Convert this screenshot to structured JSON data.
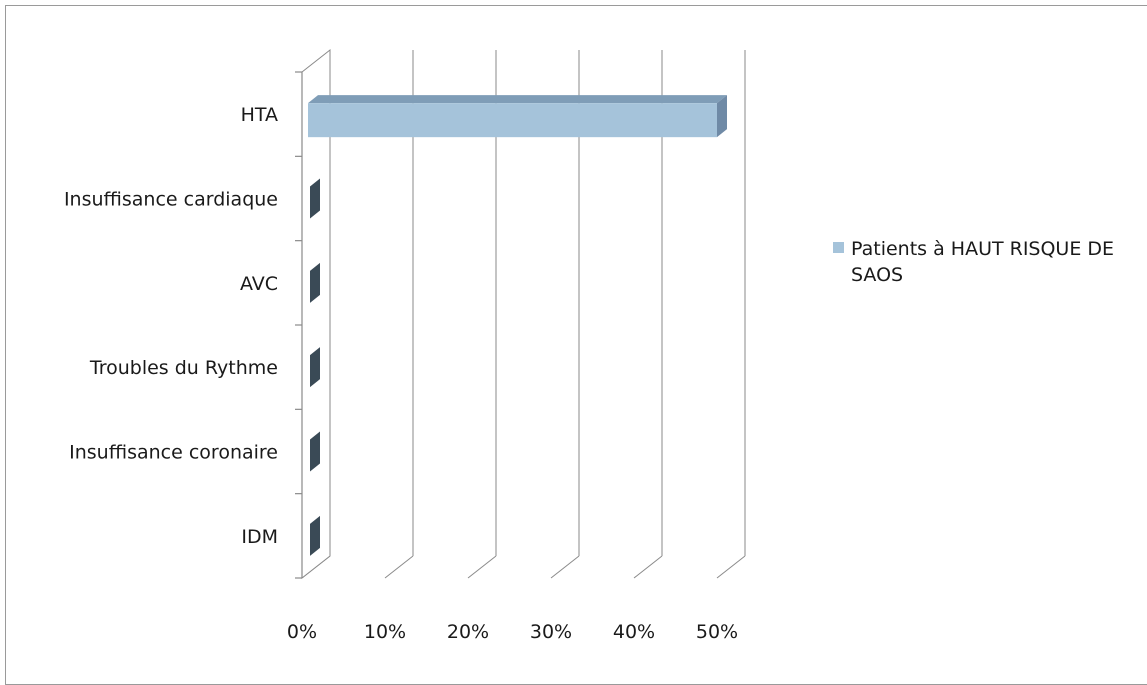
{
  "chart_data": {
    "type": "bar",
    "orientation": "horizontal",
    "three_d": true,
    "categories": [
      "HTA",
      "Insuffisance cardiaque",
      "AVC",
      "Troubles du Rythme",
      "Insuffisance coronaire",
      "IDM"
    ],
    "series": [
      {
        "name": "Patients à HAUT RISQUE DE SAOS",
        "values": [
          0.5,
          0,
          0,
          0,
          0,
          0
        ]
      }
    ],
    "x_ticks": [
      "0%",
      "10%",
      "20%",
      "30%",
      "40%",
      "50%"
    ],
    "xlim": [
      0,
      0.5
    ],
    "grid": true,
    "legend_position": "right",
    "colors": {
      "bar_front": "#a5c3da",
      "bar_top": "#7f9db7",
      "bar_side": "#6f8aa6",
      "empty_bar": "#3a4a56",
      "grid": "#8a8a8a",
      "wall": "#ffffff"
    }
  }
}
